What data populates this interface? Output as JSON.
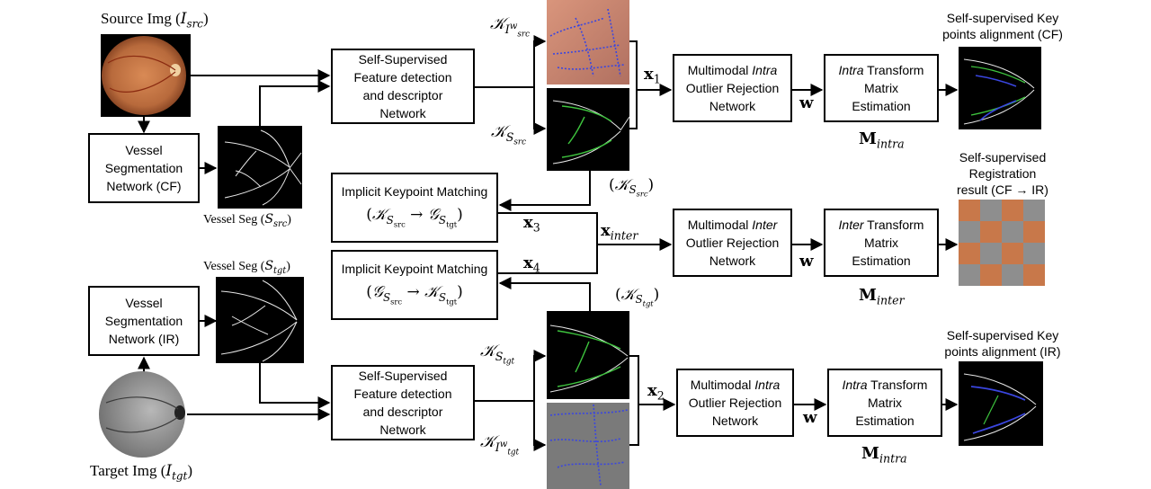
{
  "source_label": "Source Img (",
  "source_label_sym": "I",
  "source_label_sub": "src",
  "target_label": "Target Img (",
  "target_label_sym": "I",
  "target_label_sub": "tgt",
  "vessel_seg_src_label": "Vessel Seg  (",
  "vessel_seg_src_sym": "S",
  "vessel_seg_src_sub": "src",
  "vessel_seg_tgt_label": "Vessel Seg  (",
  "vessel_seg_tgt_sym": "S",
  "vessel_seg_tgt_sub": "tgt",
  "boxes": {
    "vessel_cf": [
      "Vessel",
      "Segmentation",
      "Network (CF)"
    ],
    "vessel_ir": [
      "Vessel",
      "Segmentation",
      "Network (IR)"
    ],
    "feat_top": [
      "Self-Supervised",
      "Feature detection",
      "and descriptor",
      "Network"
    ],
    "feat_bottom": [
      "Self-Supervised",
      "Feature detection",
      "and descriptor",
      "Network"
    ],
    "match_1_title": "Implicit Keypoint Matching",
    "match_1_formula": "(𝒦S_src → 𝒢S_tgt)",
    "match_2_title": "Implicit Keypoint Matching",
    "match_2_formula": "(𝒢S_src → 𝒦S_tgt)",
    "outlier_top": [
      "Multimodal ",
      "Intra",
      "Outlier Rejection",
      "Network"
    ],
    "outlier_mid": [
      "Multimodal ",
      "Inter",
      "Outlier Rejection",
      "Network"
    ],
    "outlier_bottom": [
      "Multimodal ",
      "Intra",
      "Outlier Rejection",
      "Network"
    ],
    "transform_top": [
      "Intra",
      " Transform",
      "Matrix",
      "Estimation"
    ],
    "transform_mid": [
      "Inter",
      " Transform",
      "Matrix",
      "Estimation"
    ],
    "transform_bottom": [
      "Intra",
      " Transform",
      "Matrix",
      "Estimation"
    ]
  },
  "symbols": {
    "x1": "x",
    "x1_sub": "1",
    "x2": "x",
    "x2_sub": "2",
    "x3": "x",
    "x3_sub": "3",
    "x4": "x",
    "x4_sub": "4",
    "x_inter": "x",
    "x_inter_sub": "inter",
    "w": "w",
    "M": "M",
    "m_intra_sub": "intra",
    "m_inter_sub": "inter"
  },
  "captions": {
    "top_right": [
      "Self-supervised Key",
      "points alignment  (CF)"
    ],
    "mid_right": [
      "Self-supervised",
      "Registration",
      "result (CF → IR)"
    ],
    "bottom_right": [
      "Self-supervised Key",
      "points alignment (IR)"
    ]
  },
  "colors": {
    "fundus": "#c8784a",
    "vessel_green": "#3ec43e",
    "keypoint_blue": "#3a46e0",
    "ir_gray": "#8e8e8e"
  }
}
